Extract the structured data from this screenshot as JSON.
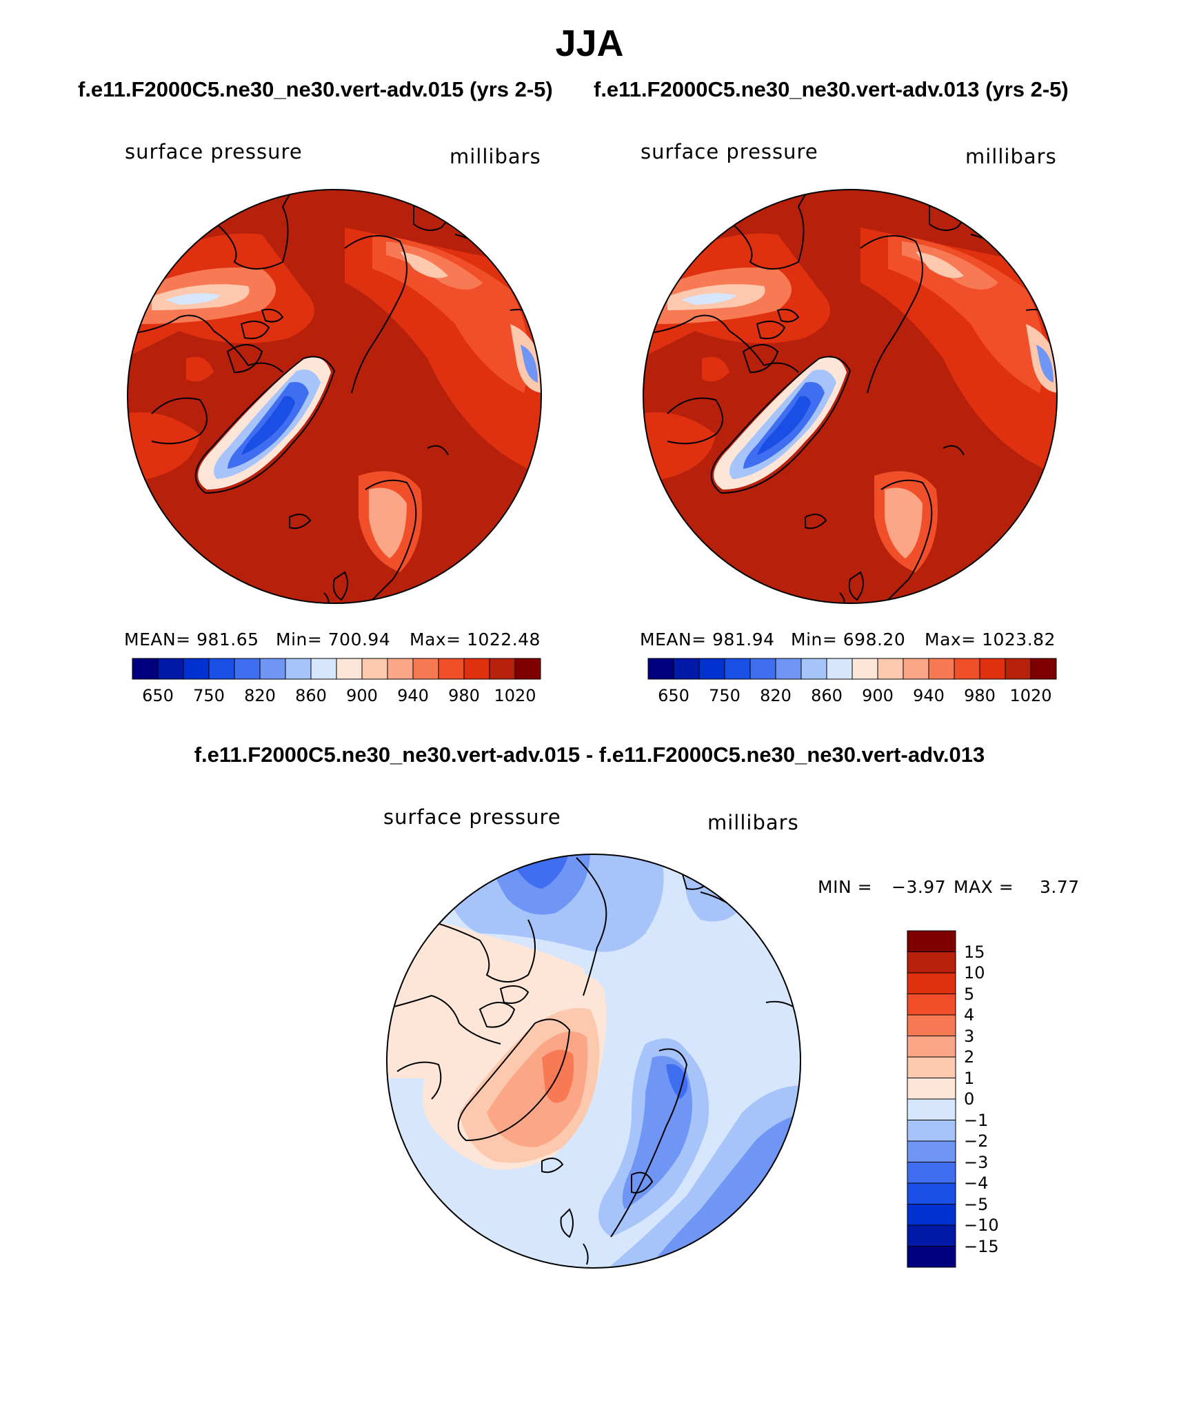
{
  "title": "JJA",
  "case_titles": [
    "f.e11.F2000C5.ne30_ne30.vert-adv.015 (yrs 2-5)",
    "f.e11.F2000C5.ne30_ne30.vert-adv.013 (yrs 2-5)"
  ],
  "panels": [
    {
      "variable": "surface pressure",
      "units": "millibars",
      "stats": {
        "mean": "MEAN= 981.65",
        "min": "Min= 700.94",
        "max": "Max= 1022.48"
      }
    },
    {
      "variable": "surface pressure",
      "units": "millibars",
      "stats": {
        "mean": "MEAN= 981.94",
        "min": "Min= 698.20",
        "max": "Max= 1023.82"
      }
    }
  ],
  "colorbar_abs": {
    "colors": [
      "#00007f",
      "#0019a6",
      "#0032d2",
      "#1a4fe6",
      "#3f6ef0",
      "#6f95f5",
      "#a6c3fa",
      "#d6e6fc",
      "#fde6d8",
      "#fcc8ae",
      "#fba686",
      "#f87a55",
      "#f14e2a",
      "#df3110",
      "#b7200b",
      "#7f0000"
    ],
    "ticks": [
      "650",
      "750",
      "820",
      "860",
      "900",
      "940",
      "980",
      "1020"
    ]
  },
  "diff_title": "f.e11.F2000C5.ne30_ne30.vert-adv.015 - f.e11.F2000C5.ne30_ne30.vert-adv.013",
  "diff_panel": {
    "variable": "surface pressure",
    "units": "millibars",
    "min_label": "MIN =",
    "min_value": "−3.97",
    "max_label": "MAX =",
    "max_value": "3.77"
  },
  "colorbar_diff": {
    "colors_top_to_bottom": [
      "#7f0000",
      "#b7200b",
      "#df3110",
      "#f14e2a",
      "#f87a55",
      "#fba686",
      "#fcc8ae",
      "#fde6d8",
      "#d6e6fc",
      "#a6c3fa",
      "#6f95f5",
      "#3f6ef0",
      "#1a4fe6",
      "#0032d2",
      "#0019a6",
      "#00007f"
    ],
    "ticks": [
      "15",
      "10",
      "5",
      "4",
      "3",
      "2",
      "1",
      "0",
      "−1",
      "−2",
      "−3",
      "−4",
      "−5",
      "−10",
      "−15"
    ]
  },
  "colors": {
    "land_outline": "#000000",
    "abs_background": "#b7200b"
  }
}
